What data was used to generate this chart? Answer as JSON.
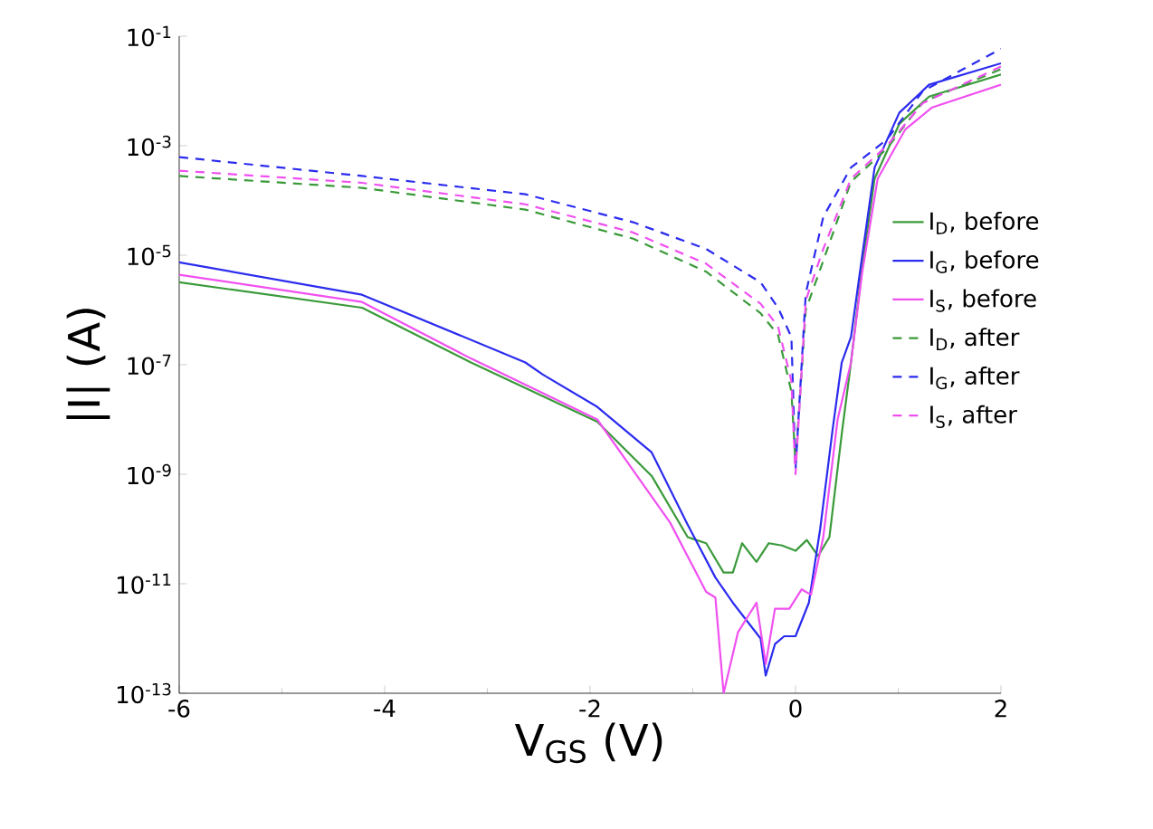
{
  "chart_data": {
    "type": "line",
    "xlabel": "V$_{GS}$ (V)",
    "ylabel": "|I| (A)",
    "log": "y",
    "grid": false,
    "legend": "right",
    "marker": "none",
    "xlim": [
      -6,
      2
    ],
    "xticks": [
      -6,
      -4,
      -2,
      0,
      2
    ],
    "ylim": [
      1e-13,
      0.1
    ],
    "yticks": [
      {
        "value": 0.1,
        "label": "10$^{-1}$"
      },
      {
        "value": 0.001,
        "label": "10$^{-3}$"
      },
      {
        "value": 1e-05,
        "label": "10$^{-5}$"
      },
      {
        "value": 1e-07,
        "label": "10$^{-7}$"
      },
      {
        "value": 1e-09,
        "label": "10$^{-9}$"
      },
      {
        "value": 1e-11,
        "label": "10$^{-11}$"
      },
      {
        "value": 1e-13,
        "label": "10$^{-13}$"
      }
    ],
    "series": [
      {
        "name": "I$_{D}$, before",
        "color": "#3a9a3a",
        "line_style": "solid",
        "x": [
          -6,
          -4.22,
          -3.16,
          -1.93,
          -1.4,
          -1.05,
          -0.87,
          -0.7,
          -0.61,
          -0.52,
          -0.38,
          -0.26,
          -0.13,
          0,
          0.11,
          0.22,
          0.33,
          0.45,
          0.54,
          0.65,
          0.77,
          1.01,
          1.3,
          2
        ],
        "values": [
          3.2e-06,
          1.1e-06,
          1.1e-07,
          9.1e-09,
          9.3e-10,
          7.1e-11,
          5.5e-11,
          1.6e-11,
          1.6e-11,
          5.5e-11,
          2.5e-11,
          5.5e-11,
          5e-11,
          4e-11,
          6.3e-11,
          3.2e-11,
          7.1e-11,
          5.4e-09,
          1.1e-07,
          6.3e-06,
          0.00025,
          0.0025,
          0.0079,
          0.02
        ]
      },
      {
        "name": "I$_{G}$, before",
        "color": "#2b2bef",
        "line_style": "solid",
        "x": [
          -6,
          -4.22,
          -2.63,
          -2.46,
          -1.93,
          -1.4,
          -1.05,
          -0.78,
          -0.61,
          -0.34,
          -0.29,
          -0.2,
          -0.11,
          0,
          0.13,
          0.24,
          0.36,
          0.45,
          0.54,
          0.65,
          0.77,
          1.01,
          1.3,
          2
        ],
        "values": [
          7.4e-06,
          1.9e-06,
          1.1e-07,
          6.6e-08,
          1.7e-08,
          2.5e-09,
          1.2e-10,
          1.3e-11,
          4.5e-12,
          1e-12,
          2.1e-13,
          7.9e-13,
          1.1e-12,
          1.1e-12,
          4.5e-12,
          1e-10,
          6.3e-09,
          1.1e-07,
          3.2e-07,
          1e-05,
          0.0004,
          0.004,
          0.013,
          0.032
        ]
      },
      {
        "name": "I$_{S}$, before",
        "color": "#f050f0",
        "line_style": "solid",
        "x": [
          -6,
          -4.22,
          -3.16,
          -1.93,
          -1.22,
          -0.87,
          -0.78,
          -0.7,
          -0.56,
          -0.38,
          -0.29,
          -0.2,
          -0.06,
          0.06,
          0.15,
          0.27,
          0.41,
          0.54,
          0.65,
          0.8,
          1.07,
          1.33,
          2
        ],
        "values": [
          4.4e-06,
          1.4e-06,
          1.3e-07,
          1e-08,
          1.3e-10,
          7.1e-12,
          5.6e-12,
          1e-13,
          1.3e-12,
          4.5e-12,
          3.4e-13,
          3.5e-12,
          3.5e-12,
          7.9e-12,
          6.3e-12,
          7.1e-11,
          1e-08,
          1.1e-07,
          5e-06,
          0.00025,
          0.002,
          0.005,
          0.013
        ]
      },
      {
        "name": "I$_{D}$, after",
        "color": "#3a9a3a",
        "line_style": "dashed",
        "x": [
          -6,
          -4.22,
          -2.63,
          -1.58,
          -0.87,
          -0.34,
          -0.17,
          -0.04,
          0,
          0.1,
          0.27,
          0.54,
          0.89,
          1.24,
          2
        ],
        "values": [
          0.00028,
          0.00017,
          6.8e-05,
          2e-05,
          5e-06,
          8.7e-07,
          3.5e-07,
          3.2e-08,
          1.6e-09,
          1e-06,
          7.9e-06,
          0.00022,
          0.00089,
          0.0063,
          0.025
        ]
      },
      {
        "name": "I$_{G}$, after",
        "color": "#2b2bef",
        "line_style": "dashed",
        "x": [
          -6,
          -4.22,
          -2.63,
          -1.58,
          -0.87,
          -0.34,
          -0.17,
          -0.04,
          0,
          0.1,
          0.27,
          0.54,
          0.89,
          1.24,
          2
        ],
        "values": [
          0.00062,
          0.00028,
          0.00013,
          4e-05,
          1.3e-05,
          3.2e-06,
          1.1e-06,
          3.2e-07,
          1.2e-09,
          2e-06,
          5e-05,
          0.0004,
          0.0013,
          0.01,
          0.059
        ]
      },
      {
        "name": "I$_{S}$, after",
        "color": "#f050f0",
        "line_style": "dashed",
        "x": [
          -6,
          -4.22,
          -2.63,
          -1.58,
          -0.87,
          -0.34,
          -0.17,
          -0.04,
          0,
          0.1,
          0.27,
          0.54,
          0.89,
          1.24,
          2
        ],
        "values": [
          0.00035,
          0.00021,
          8.5e-05,
          2.6e-05,
          7e-06,
          1.3e-06,
          5e-07,
          5e-08,
          1e-09,
          1.5e-06,
          1.3e-05,
          0.00025,
          0.001,
          0.006,
          0.028
        ]
      }
    ]
  }
}
